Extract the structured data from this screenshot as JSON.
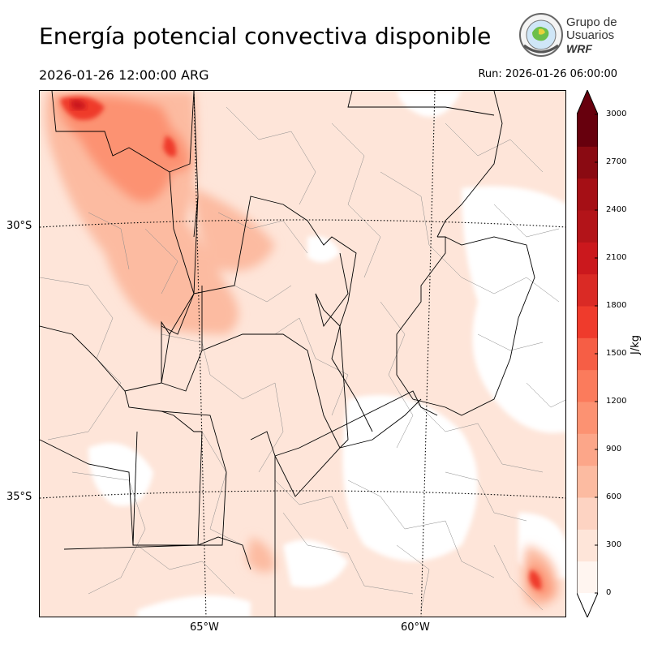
{
  "header": {
    "title": "Energía potencial convectiva disponible",
    "valid_time": "2026-01-26 12:00:00 ARG",
    "run_time": "Run: 2026-01-26 06:00:00"
  },
  "logo": {
    "line1": "Grupo de",
    "line2": "Usuarios",
    "line3": "WRF"
  },
  "map": {
    "lat_labels": [
      "30°S",
      "35°S"
    ],
    "lon_labels": [
      "65°W",
      "60°W"
    ],
    "graticule_style": "dotted"
  },
  "colorbar": {
    "unit": "J/kg",
    "ticks": [
      "0",
      "300",
      "600",
      "900",
      "1200",
      "1500",
      "1800",
      "2100",
      "2400",
      "2700",
      "3000"
    ],
    "levels": [
      0,
      150,
      300,
      450,
      600,
      750,
      900,
      1050,
      1200,
      1350,
      1500,
      1650,
      1800,
      1950,
      2100,
      2250,
      2400,
      2550,
      2700,
      2850,
      3000
    ],
    "colors": [
      "#fff5f0",
      "#fee5d9",
      "#fdd3c2",
      "#fcbba1",
      "#fca689",
      "#fc9272",
      "#fb7b5c",
      "#f65e45",
      "#ef3b2c",
      "#da2a25",
      "#cb181d",
      "#b31419",
      "#a50f15",
      "#8a0a12",
      "#67000d"
    ],
    "extend": "both"
  }
}
